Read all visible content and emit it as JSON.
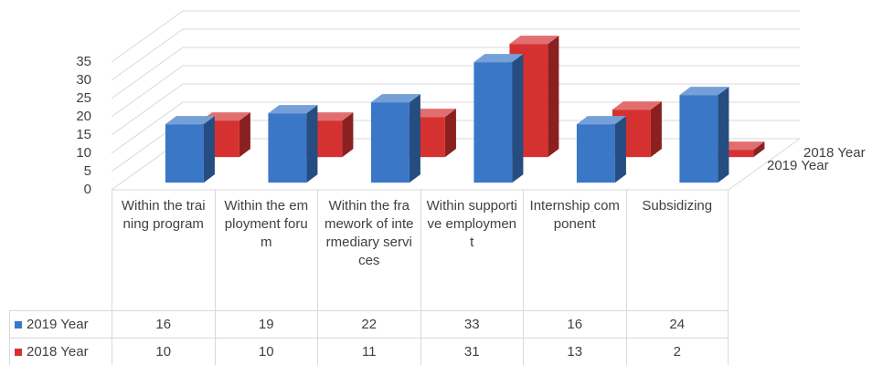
{
  "chart_data": {
    "type": "bar3d",
    "categories": [
      "Within the training program",
      "Within the employment forum",
      "Within the framework of intermediary services",
      "Within supportive employment",
      "Internship component",
      "Subsidizing"
    ],
    "series": [
      {
        "name": "2019 Year",
        "color": "#3a77c6",
        "values": [
          16,
          19,
          22,
          33,
          16,
          24
        ]
      },
      {
        "name": "2018 Year",
        "color": "#d63131",
        "values": [
          10,
          10,
          11,
          31,
          13,
          2
        ]
      }
    ],
    "ylim": [
      0,
      35
    ],
    "yticks": [
      0,
      5,
      10,
      15,
      20,
      25,
      30,
      35
    ],
    "grid": true,
    "data_table": true
  }
}
